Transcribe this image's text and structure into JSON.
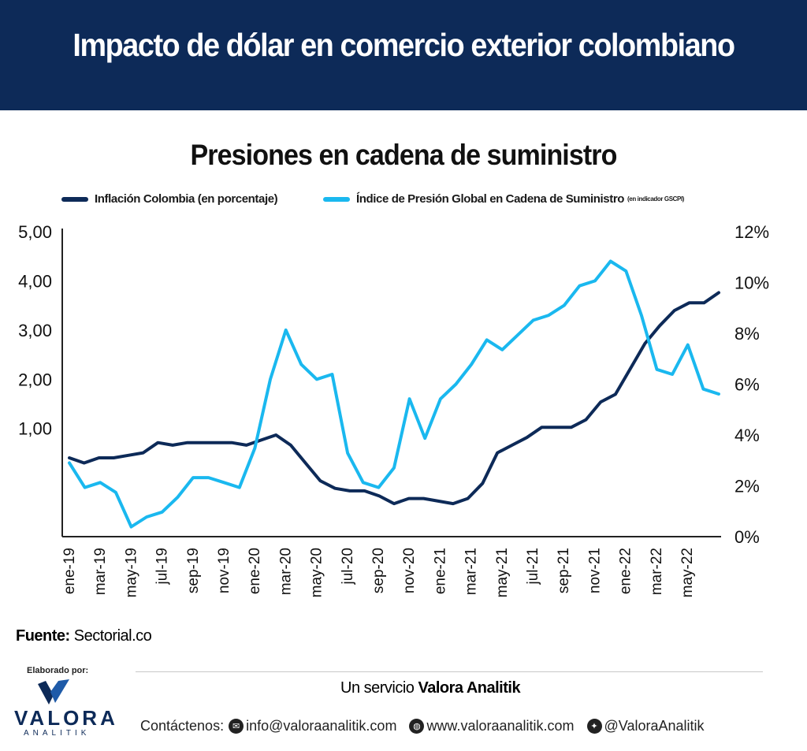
{
  "header": {
    "title": "Impacto de dólar en comercio exterior colombiano"
  },
  "colors": {
    "header_bg": "#0d2a58",
    "series_dark": "#0d2a58",
    "series_light": "#1ab8ef"
  },
  "chart_data": {
    "type": "line",
    "title": "Presiones en cadena de suministro",
    "legend": [
      {
        "label": "Inflación Colombia (en porcentaje)",
        "small": ""
      },
      {
        "label": "Índice de Presión Global en Cadena de Suministro",
        "small": "(en indicador GSCPI)"
      }
    ],
    "left_axis": {
      "min": -1.2,
      "max": 5.0,
      "ticks": [
        1,
        2,
        3,
        4,
        5
      ],
      "tick_labels": [
        "1,00",
        "2,00",
        "3,00",
        "4,00",
        "5,00"
      ]
    },
    "right_axis": {
      "min": 0,
      "max": 12,
      "ticks": [
        0,
        2,
        4,
        6,
        8,
        10,
        12
      ],
      "tick_labels": [
        "0%",
        "2%",
        "4%",
        "6%",
        "8%",
        "10%",
        "12%"
      ]
    },
    "x_tick_labels": [
      "ene-19",
      "mar-19",
      "may-19",
      "jul-19",
      "sep-19",
      "nov-19",
      "ene-20",
      "mar-20",
      "may-20",
      "jul-20",
      "sep-20",
      "nov-20",
      "ene-21",
      "mar-21",
      "may-21",
      "jul-21",
      "sep-21",
      "nov-21",
      "ene-22",
      "mar-22",
      "may-22"
    ],
    "series": [
      {
        "name": "Inflación Colombia (en porcentaje)",
        "axis": "right",
        "values": [
          3.1,
          2.9,
          3.1,
          3.1,
          3.2,
          3.3,
          3.7,
          3.6,
          3.7,
          3.7,
          3.7,
          3.7,
          3.6,
          3.8,
          4.0,
          3.6,
          2.9,
          2.2,
          1.9,
          1.8,
          1.8,
          1.6,
          1.3,
          1.5,
          1.5,
          1.4,
          1.3,
          1.5,
          2.1,
          3.3,
          3.6,
          3.9,
          4.3,
          4.3,
          4.3,
          4.6,
          5.3,
          5.6,
          6.6,
          7.6,
          8.3,
          8.9,
          9.2,
          9.2,
          9.6
        ]
      },
      {
        "name": "Índice de Presión Global en Cadena de Suministro",
        "axis": "left",
        "values": [
          0.3,
          -0.2,
          -0.1,
          -0.3,
          -1.0,
          -0.8,
          -0.7,
          -0.4,
          0.0,
          0.0,
          -0.1,
          -0.2,
          0.6,
          2.0,
          3.0,
          2.3,
          2.0,
          2.1,
          0.5,
          -0.1,
          -0.2,
          0.2,
          1.6,
          0.8,
          1.6,
          1.9,
          2.3,
          2.8,
          2.6,
          2.9,
          3.2,
          3.3,
          3.5,
          3.9,
          4.0,
          4.4,
          4.2,
          3.3,
          2.2,
          2.1,
          2.7,
          1.8,
          1.7
        ]
      }
    ]
  },
  "footer": {
    "source_label": "Fuente:",
    "source_value": "Sectorial.co",
    "elaborado": "Elaborado por:",
    "logo_name": "VALORA",
    "logo_sub": "ANALITIK",
    "service_prefix": "Un servicio ",
    "service_brand": "Valora Analitik",
    "contact_label": "Contáctenos:",
    "email": "info@valoraanalitik.com",
    "website": "www.valoraanalitik.com",
    "twitter": "@ValoraAnalitik"
  }
}
